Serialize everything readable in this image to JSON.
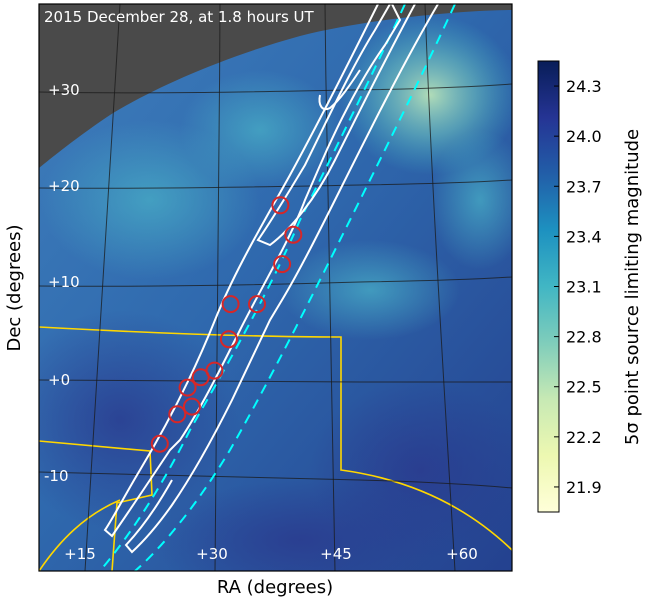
{
  "chart_data": {
    "type": "heatmap",
    "title": "2015 December 28, at 1.8 hours UT",
    "xlabel": "RA (degrees)",
    "ylabel": "Dec (degrees)",
    "ra_ticks": [
      "+15",
      "+30",
      "+45",
      "+60"
    ],
    "dec_ticks": [
      "+30",
      "+20",
      "+10",
      "+0",
      "-10"
    ],
    "colorbar": {
      "label": "5σ point source limiting magnitude",
      "ticks": [
        "24.3",
        "24.0",
        "23.7",
        "23.4",
        "23.1",
        "22.8",
        "22.5",
        "22.2",
        "21.9"
      ],
      "range": [
        21.75,
        24.45
      ],
      "colormap": [
        "#ffffd9",
        "#edf8b1",
        "#c7e9b4",
        "#7fcdbb",
        "#41b6c4",
        "#1d91c0",
        "#225ea8",
        "#253494",
        "#081d58"
      ]
    },
    "candidate_markers": [
      {
        "ra": 37.6,
        "dec": 18.5
      },
      {
        "ra": 39.3,
        "dec": 15.4
      },
      {
        "ra": 38.0,
        "dec": 12.3
      },
      {
        "ra": 31.7,
        "dec": 8.1
      },
      {
        "ra": 35.0,
        "dec": 8.1
      },
      {
        "ra": 31.6,
        "dec": 4.4
      },
      {
        "ra": 29.9,
        "dec": 1.1
      },
      {
        "ra": 28.2,
        "dec": 0.4
      },
      {
        "ra": 26.6,
        "dec": -0.7
      },
      {
        "ra": 27.2,
        "dec": -2.7
      },
      {
        "ra": 25.4,
        "dec": -3.5
      },
      {
        "ra": 23.3,
        "dec": -6.6
      }
    ],
    "colors": {
      "sky_mask": "#4a4a4a",
      "grid": "#1a1a1a",
      "solid_contour": "#ffffff",
      "dashed_contour": "#00ffff",
      "markers": "#d62728",
      "boundary": "#ffd700"
    }
  }
}
